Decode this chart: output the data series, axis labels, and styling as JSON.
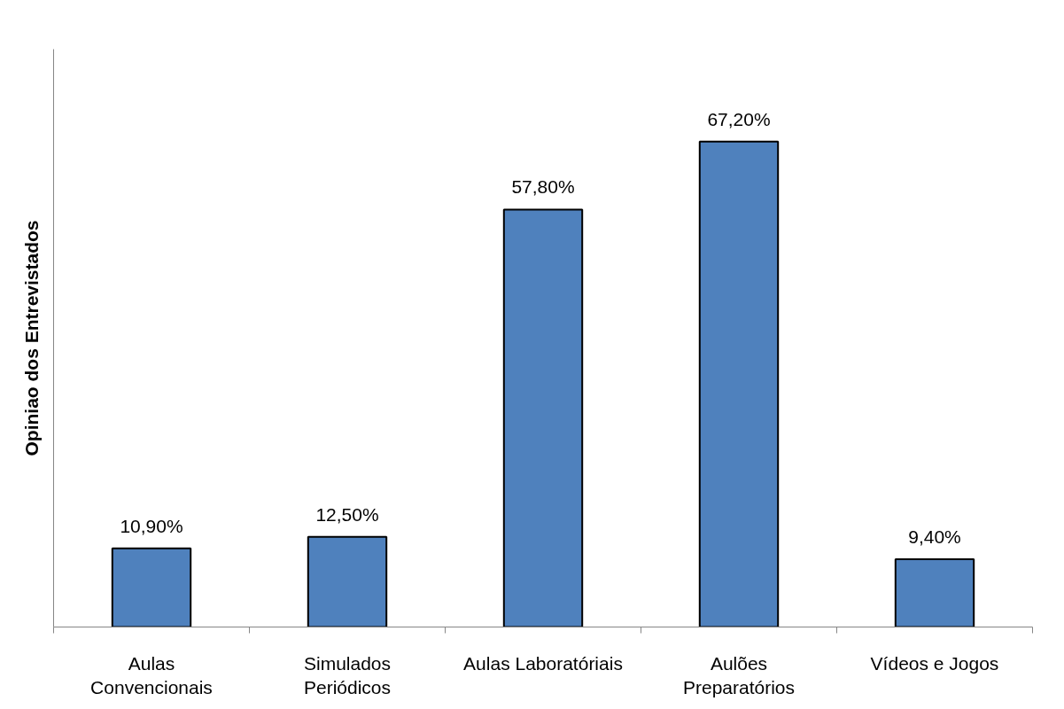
{
  "chart_data": {
    "type": "bar",
    "ylabel": "Opiniao dos Entrevistados",
    "categories": [
      "Aulas\nConvencionais",
      "Simulados\nPeriódicos",
      "Aulas Laboratóriais",
      "Aulões\nPreparatórios",
      "Vídeos e Jogos"
    ],
    "values": [
      10.9,
      12.5,
      57.8,
      67.2,
      9.4
    ],
    "value_labels": [
      "10,90%",
      "12,50%",
      "57,80%",
      "67,20%",
      "9,40%"
    ],
    "color": "#4f81bd",
    "ylim": [
      0,
      80
    ],
    "tick_labels": "x",
    "grid": false
  }
}
